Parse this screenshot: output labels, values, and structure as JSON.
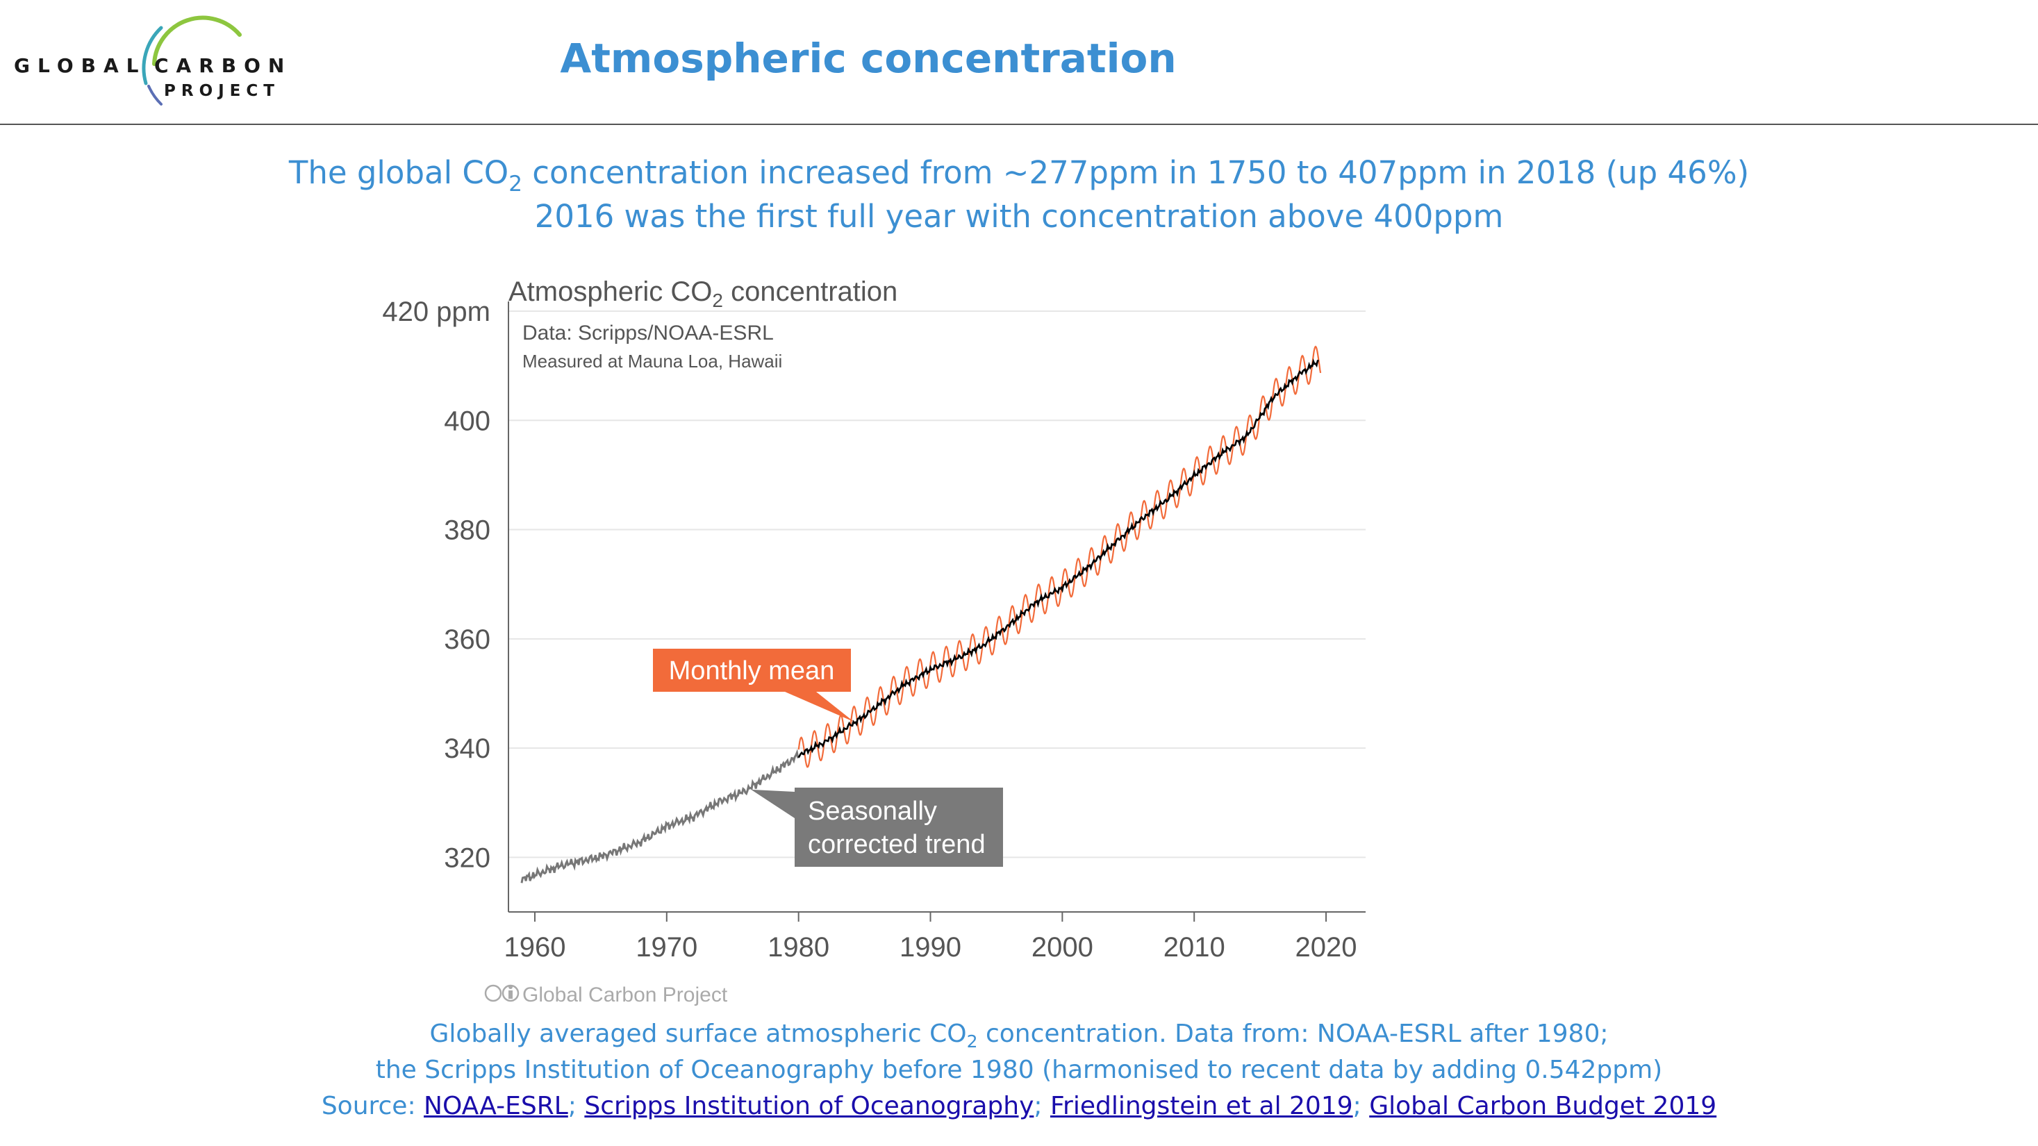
{
  "logo": {
    "word1": "GLOBAL",
    "word2": "CARBON",
    "word3": "PROJECT",
    "arc_colors": [
      "#8dc63f",
      "#3aa6b9",
      "#5b6fb5"
    ]
  },
  "header": {
    "title": "Atmospheric concentration"
  },
  "subtitle": {
    "line1_pre": "The global CO",
    "line1_sub": "2",
    "line1_post": " concentration increased from ~277ppm in 1750 to 407ppm in 2018 (up 46%)",
    "line2": "2016 was the first full year with concentration above 400ppm"
  },
  "chart_data": {
    "type": "line",
    "title_pre": "Atmospheric CO",
    "title_sub": "2",
    "title_post": " concentration",
    "data_note": "Data: Scripps/NOAA-ESRL",
    "location_note": "Measured at Mauna Loa, Hawaii",
    "credit": "Global Carbon Project",
    "xlim": [
      1958,
      2023
    ],
    "ylim": [
      310,
      420
    ],
    "x_ticks": [
      1960,
      1970,
      1980,
      1990,
      2000,
      2010,
      2020
    ],
    "y_ticks": [
      {
        "value": 320,
        "label": "320"
      },
      {
        "value": 340,
        "label": "340"
      },
      {
        "value": 360,
        "label": "360"
      },
      {
        "value": 380,
        "label": "380"
      },
      {
        "value": 400,
        "label": "400"
      },
      {
        "value": 420,
        "label": "420 ppm"
      }
    ],
    "grid": "horizontal",
    "seasonal_amplitude": 3.0,
    "series": [
      {
        "name": "Seasonally corrected trend",
        "color": "#777777",
        "x": [
          1959,
          1962,
          1965,
          1968,
          1970,
          1972,
          1974,
          1976,
          1978,
          1980,
          1982,
          1985,
          1988,
          1990,
          1992,
          1994,
          1996,
          1998,
          2000,
          2002,
          2004,
          2006,
          2008,
          2010,
          2012,
          2014,
          2016,
          2018,
          2019.5
        ],
        "y": [
          315.9,
          318.5,
          320.1,
          322.8,
          325.7,
          327.4,
          330.2,
          332.2,
          335.4,
          338.7,
          341.1,
          345.9,
          351.6,
          354.4,
          356.4,
          358.8,
          362.6,
          366.7,
          369.4,
          373.2,
          377.6,
          381.9,
          385.6,
          389.9,
          393.8,
          397.2,
          404.2,
          408.5,
          411.0
        ]
      },
      {
        "name": "Monthly mean",
        "color": "#f26b3a",
        "x_start": 1980.0,
        "x_end": 2019.6
      }
    ],
    "annotations": [
      {
        "text": "Monthly mean",
        "bg": "#f26b3a",
        "target_x": 1984.2,
        "target_y": 344.8
      },
      {
        "text_line1": "Seasonally",
        "text_line2": "corrected trend",
        "bg": "#7a7a7a",
        "target_x": 1976.4,
        "target_y": 332.4
      }
    ]
  },
  "caption": {
    "line1_pre": "Globally averaged surface atmospheric CO",
    "line1_sub": "2",
    "line1_post": " concentration. Data from: NOAA-ESRL after 1980;",
    "line2": "the Scripps Institution of Oceanography before 1980 (harmonised to recent data by adding 0.542ppm)",
    "source_label": "Source: ",
    "links": [
      "NOAA-ESRL",
      "Scripps Institution of Oceanography",
      "Friedlingstein et al 2019",
      "Global Carbon Budget 2019"
    ],
    "separator": "; "
  }
}
